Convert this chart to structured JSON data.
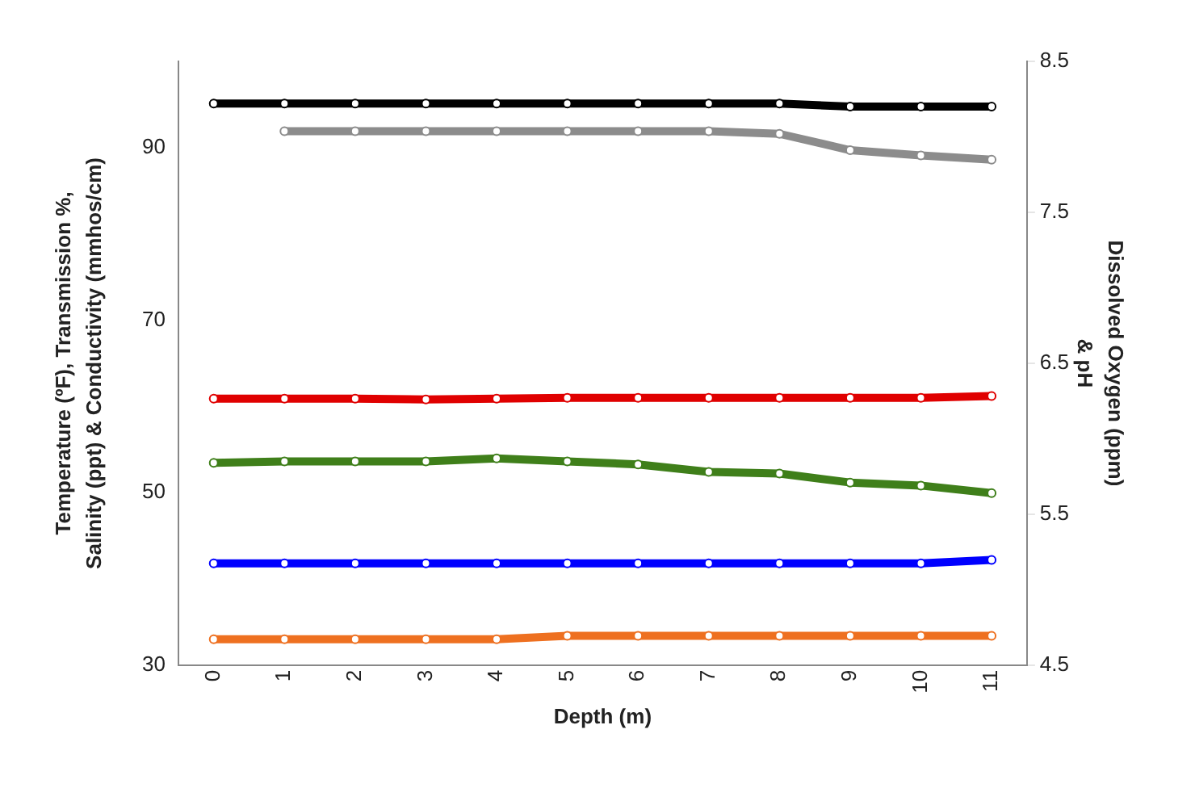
{
  "chart_data": {
    "type": "line",
    "xlabel": "Depth (m)",
    "ylabel": "Temperature (ºF), Transmission %,\nSalinity (ppt) & Conductivity (mmhos/cm)",
    "y2label": "Dissolved Oxygen (ppm)\n& pH",
    "categories": [
      "0",
      "1",
      "2",
      "3",
      "4",
      "5",
      "6",
      "7",
      "8",
      "9",
      "10",
      "11"
    ],
    "ylim": [
      30,
      100
    ],
    "yticks": [
      30,
      50,
      70,
      90
    ],
    "y2lim": [
      4.5,
      8.5
    ],
    "y2ticks": [
      4.5,
      5.5,
      6.5,
      7.5,
      8.5
    ],
    "grid": false,
    "legend": false,
    "marker": "circle",
    "line_style": "solid",
    "series": [
      {
        "color": "#000000",
        "axis": "y2",
        "values": [
          8.22,
          8.22,
          8.22,
          8.22,
          8.22,
          8.22,
          8.22,
          8.22,
          8.22,
          8.2,
          8.2,
          8.2
        ]
      },
      {
        "color": "#8c8c8c",
        "values": [
          null,
          91.9,
          91.9,
          91.9,
          91.9,
          91.9,
          91.9,
          91.9,
          91.6,
          89.7,
          89.1,
          88.6
        ]
      },
      {
        "color": "#e00000",
        "values": [
          60.9,
          60.9,
          60.9,
          60.8,
          60.9,
          61,
          61,
          61,
          61,
          61,
          61,
          61.2
        ]
      },
      {
        "color": "#3f7f1a",
        "axis": "y2",
        "values": [
          5.84,
          5.85,
          5.85,
          5.85,
          5.87,
          5.85,
          5.83,
          5.78,
          5.77,
          5.71,
          5.69,
          5.64
        ]
      },
      {
        "color": "#0000ff",
        "values": [
          41.8,
          41.8,
          41.8,
          41.8,
          41.8,
          41.8,
          41.8,
          41.8,
          41.8,
          41.8,
          41.8,
          42.2
        ]
      },
      {
        "color": "#ee7020",
        "values": [
          33,
          33,
          33,
          33,
          33,
          33.4,
          33.4,
          33.4,
          33.4,
          33.4,
          33.4,
          33.4
        ]
      }
    ]
  }
}
